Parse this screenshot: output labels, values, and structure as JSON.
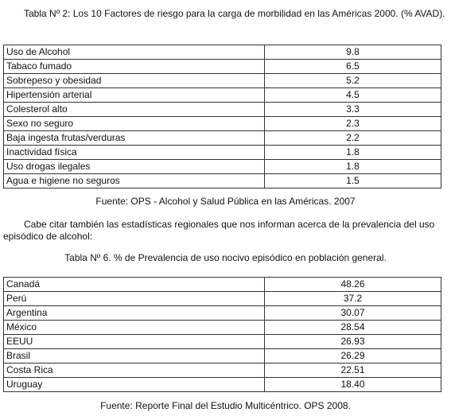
{
  "table1": {
    "title": "Tabla Nº 2: Los 10 Factores de riesgo para la carga de morbilidad en las Américas 2000. (% AVAD).",
    "rows": [
      [
        "Uso de Alcohol",
        "9.8"
      ],
      [
        "Tabaco fumado",
        "6.5"
      ],
      [
        "Sobrepeso y obesidad",
        "5.2"
      ],
      [
        "Hipertensión arterial",
        "4.5"
      ],
      [
        "Colesterol alto",
        "3.3"
      ],
      [
        "Sexo no seguro",
        "2.3"
      ],
      [
        "Baja ingesta frutas/verduras",
        "2.2"
      ],
      [
        "Inactividad física",
        "1.8"
      ],
      [
        "Uso drogas ilegales",
        "1.8"
      ],
      [
        "Agua e higiene no seguros",
        "1.5"
      ]
    ],
    "source": "Fuente: OPS - Alcohol y Salud Pública en las Américas. 2007"
  },
  "paragraph": "Cabe citar también las estadísticas regionales que nos informan acerca de la prevalencia del uso episódico de alcohol:",
  "table2": {
    "title": "Tabla Nº 6. % de Prevalencia de uso nocivo episódico en población general.",
    "rows": [
      [
        "Canadá",
        "48.26"
      ],
      [
        "Perú",
        "37.2"
      ],
      [
        "Argentina",
        "30.07"
      ],
      [
        "México",
        "28.54"
      ],
      [
        "EEUU",
        "26.93"
      ],
      [
        "Brasil",
        "26.29"
      ],
      [
        "Costa Rica",
        "22.51"
      ],
      [
        "Uruguay",
        "18.40"
      ]
    ],
    "source": "Fuente: Reporte Final del Estudio Multicéntrico. OPS 2008."
  }
}
